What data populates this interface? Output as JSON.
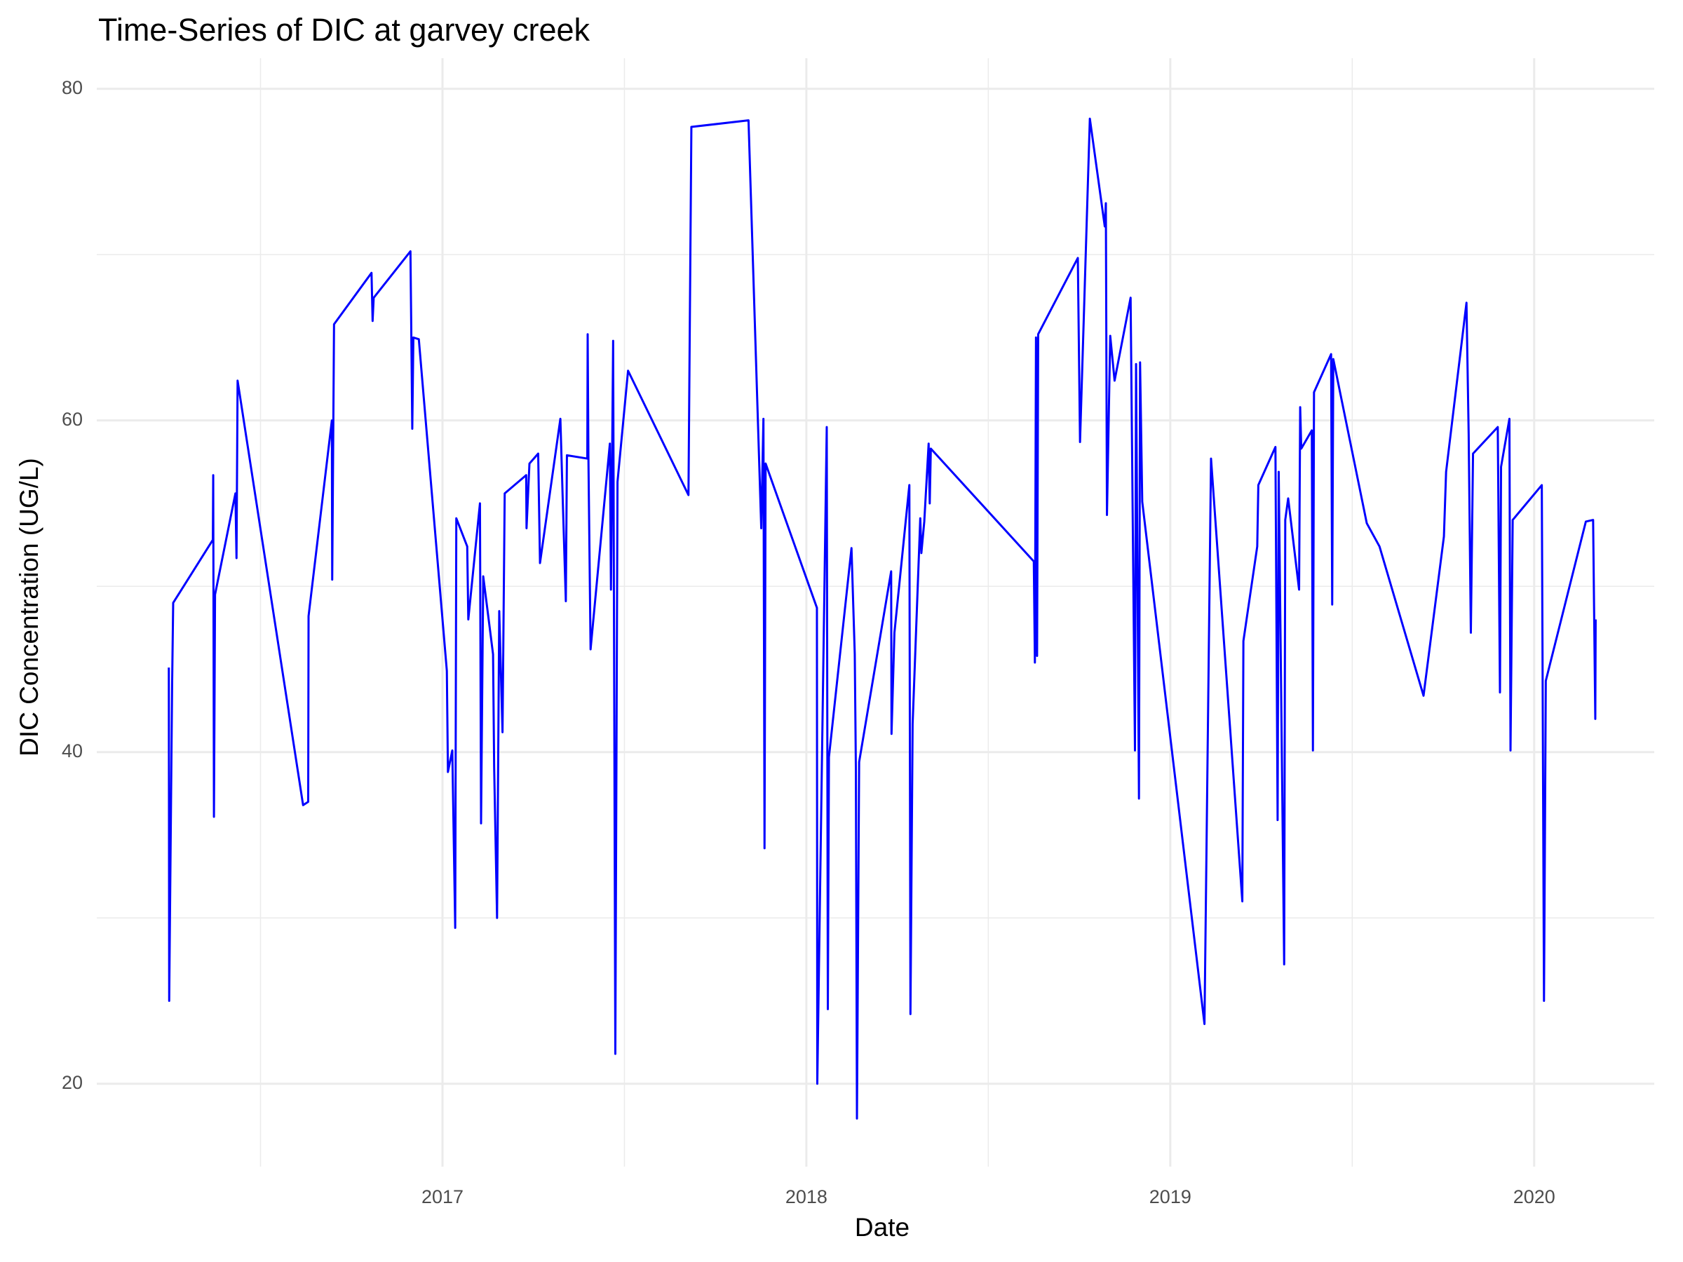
{
  "chart_data": {
    "type": "line",
    "title": "Time-Series of DIC at garvey creek",
    "x_label": "Date",
    "y_label": "DIC Concentration (UG/L)",
    "color": "#0000ff",
    "grid": true,
    "xlim": [
      2016.05,
      2020.33
    ],
    "xticks": [
      2017,
      2018,
      2019,
      2020
    ],
    "minor_xticks": [
      2016.5,
      2017.5,
      2018.5,
      2019.5
    ],
    "ylim": [
      15,
      81
    ],
    "yticks": [
      20,
      40,
      60,
      80
    ],
    "minor_yticks": [
      30,
      50,
      70
    ],
    "x": [
      2016.248,
      2016.249,
      2016.257,
      2016.26,
      2016.369,
      2016.37,
      2016.372,
      2016.375,
      2016.431,
      2016.434,
      2016.437,
      2016.617,
      2016.631,
      2016.632,
      2016.696,
      2016.697,
      2016.702,
      2016.805,
      2016.808,
      2016.811,
      2016.912,
      2016.914,
      2016.917,
      2016.92,
      2016.935,
      2017.012,
      2017.015,
      2017.027,
      2017.035,
      2017.038,
      2017.068,
      2017.071,
      2017.103,
      2017.106,
      2017.112,
      2017.139,
      2017.142,
      2017.15,
      2017.156,
      2017.165,
      2017.171,
      2017.23,
      2017.231,
      2017.239,
      2017.263,
      2017.268,
      2017.324,
      2017.33,
      2017.339,
      2017.342,
      2017.398,
      2017.399,
      2017.401,
      2017.407,
      2017.46,
      2017.463,
      2017.469,
      2017.475,
      2017.481,
      2017.51,
      2017.676,
      2017.684,
      2017.841,
      2017.876,
      2017.882,
      2017.885,
      2017.888,
      2018.029,
      2018.03,
      2018.056,
      2018.059,
      2018.062,
      2018.124,
      2018.133,
      2018.136,
      2018.139,
      2018.145,
      2018.233,
      2018.234,
      2018.242,
      2018.283,
      2018.286,
      2018.292,
      2018.313,
      2018.316,
      2018.324,
      2018.336,
      2018.339,
      2018.342,
      2018.625,
      2018.628,
      2018.631,
      2018.634,
      2018.637,
      2018.746,
      2018.752,
      2018.779,
      2018.82,
      2018.823,
      2018.826,
      2018.835,
      2018.847,
      2018.891,
      2018.903,
      2018.906,
      2018.914,
      2018.917,
      2018.923,
      2019.094,
      2019.112,
      2019.198,
      2019.201,
      2019.239,
      2019.242,
      2019.289,
      2019.295,
      2019.298,
      2019.313,
      2019.316,
      2019.324,
      2019.354,
      2019.357,
      2019.36,
      2019.389,
      2019.392,
      2019.395,
      2019.442,
      2019.445,
      2019.448,
      2019.54,
      2019.575,
      2019.696,
      2019.752,
      2019.758,
      2019.814,
      2019.82,
      2019.826,
      2019.832,
      2019.9,
      2019.906,
      2019.909,
      2019.932,
      2019.935,
      2019.941,
      2020.021,
      2020.027,
      2020.032,
      2020.142,
      2020.162,
      2020.168,
      2020.169
    ],
    "values": [
      45.1,
      25.0,
      44.0,
      49.0,
      52.8,
      56.7,
      36.1,
      49.5,
      55.6,
      51.7,
      62.4,
      36.8,
      37.0,
      48.2,
      60.0,
      50.4,
      65.8,
      68.9,
      66.0,
      67.4,
      70.2,
      66.0,
      59.5,
      65.0,
      64.9,
      44.9,
      38.8,
      40.1,
      29.4,
      54.1,
      52.4,
      48.0,
      55.0,
      35.7,
      50.6,
      45.9,
      39.1,
      30.0,
      48.5,
      41.2,
      55.6,
      56.7,
      53.5,
      57.4,
      58.0,
      51.4,
      60.1,
      55.6,
      49.1,
      57.9,
      57.7,
      65.2,
      57.9,
      46.2,
      58.6,
      49.8,
      64.8,
      21.8,
      56.3,
      63.0,
      55.5,
      77.7,
      78.1,
      53.5,
      60.1,
      34.2,
      57.4,
      48.7,
      20.0,
      59.6,
      24.5,
      39.7,
      52.3,
      45.9,
      39.1,
      17.9,
      39.4,
      50.9,
      41.1,
      47.2,
      56.1,
      24.2,
      41.7,
      54.1,
      52.0,
      53.9,
      58.6,
      55.0,
      58.3,
      51.5,
      45.4,
      65.0,
      45.8,
      65.2,
      69.8,
      58.7,
      78.2,
      71.7,
      73.1,
      54.3,
      65.1,
      62.4,
      67.4,
      40.1,
      63.4,
      37.2,
      63.5,
      55.1,
      23.6,
      57.7,
      31.0,
      46.7,
      52.4,
      56.1,
      58.4,
      35.9,
      56.9,
      27.2,
      54.0,
      55.3,
      49.8,
      60.8,
      58.3,
      59.4,
      40.1,
      61.7,
      64.0,
      48.9,
      63.7,
      53.8,
      52.4,
      43.4,
      53.0,
      56.9,
      67.1,
      59.2,
      47.2,
      58.0,
      59.6,
      43.6,
      57.2,
      60.1,
      40.1,
      54.0,
      56.1,
      25.0,
      44.3,
      53.9,
      54.0,
      42.0,
      48.0
    ]
  }
}
